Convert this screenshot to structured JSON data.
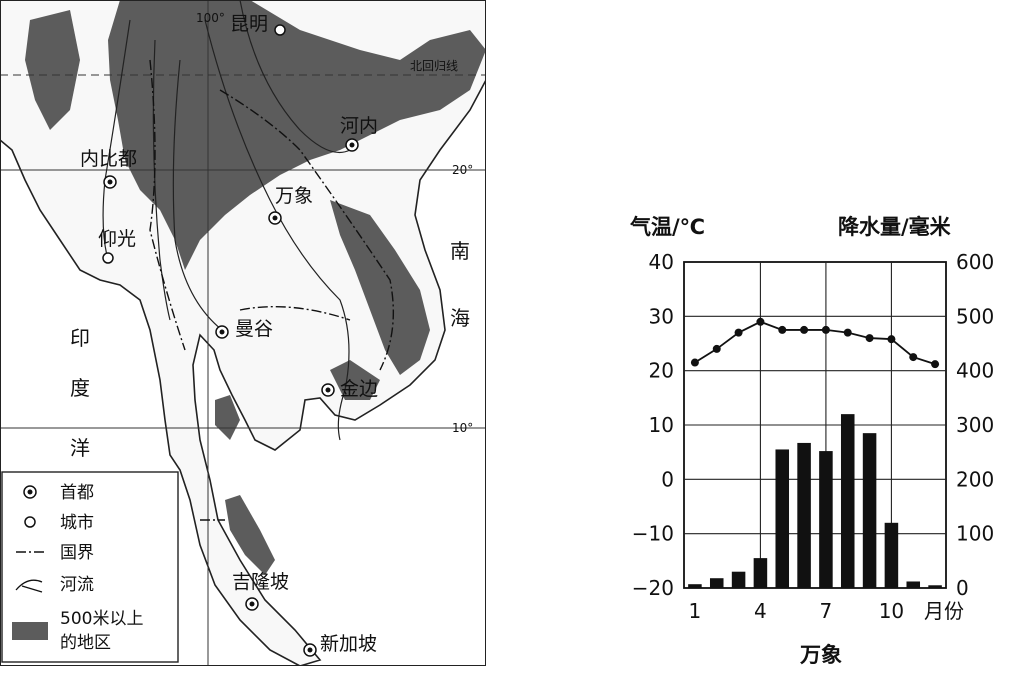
{
  "map": {
    "cities": [
      {
        "id": "kunming",
        "name": "昆明",
        "type": "city"
      },
      {
        "id": "hanoi",
        "name": "河内",
        "type": "capital"
      },
      {
        "id": "naypyidaw",
        "name": "内比都",
        "type": "capital"
      },
      {
        "id": "vientiane",
        "name": "万象",
        "type": "capital"
      },
      {
        "id": "yangon",
        "name": "仰光",
        "type": "city"
      },
      {
        "id": "bangkok",
        "name": "曼谷",
        "type": "capital"
      },
      {
        "id": "phnompenh",
        "name": "金边",
        "type": "capital"
      },
      {
        "id": "kualalumpur",
        "name": "吉隆坡",
        "type": "capital"
      },
      {
        "id": "singapore",
        "name": "新加坡",
        "type": "capital"
      }
    ],
    "seas": {
      "indian_ocean": [
        "印",
        "度",
        "洋"
      ],
      "south_china_sea": [
        "南",
        "海"
      ]
    },
    "grid": {
      "lon_100": "100°",
      "lat_20": "20°",
      "lat_10": "10°",
      "tropic": "北回归线"
    },
    "legend": {
      "capital": "首都",
      "city": "城市",
      "border": "国界",
      "river": "河流",
      "highland_line1": "500米以上",
      "highland_line2": "的地区"
    },
    "colors": {
      "highland": "#5c5c5c",
      "lines": "#222222"
    }
  },
  "chart_data": {
    "type": "bar+line",
    "title": "万象",
    "left_axis_label": "气温/℃",
    "right_axis_label": "降水量/毫米",
    "x_unit": "月份",
    "months": [
      1,
      2,
      3,
      4,
      5,
      6,
      7,
      8,
      9,
      10,
      11,
      12
    ],
    "x_tick_labels": [
      "1",
      "4",
      "7",
      "10"
    ],
    "temperature": {
      "axis": "left",
      "ylim": [
        -20,
        40
      ],
      "ticks": [
        40,
        30,
        20,
        10,
        0,
        -10,
        -20
      ],
      "values": [
        21.5,
        24,
        27,
        29,
        27.5,
        27.5,
        27.5,
        27,
        26,
        25.8,
        22.5,
        21.2
      ]
    },
    "precipitation": {
      "axis": "right",
      "ylim": [
        0,
        600
      ],
      "ticks": [
        600,
        500,
        400,
        300,
        200,
        100,
        0
      ],
      "values": [
        7,
        18,
        30,
        55,
        255,
        267,
        252,
        320,
        285,
        120,
        12,
        5
      ]
    },
    "grid": true
  }
}
